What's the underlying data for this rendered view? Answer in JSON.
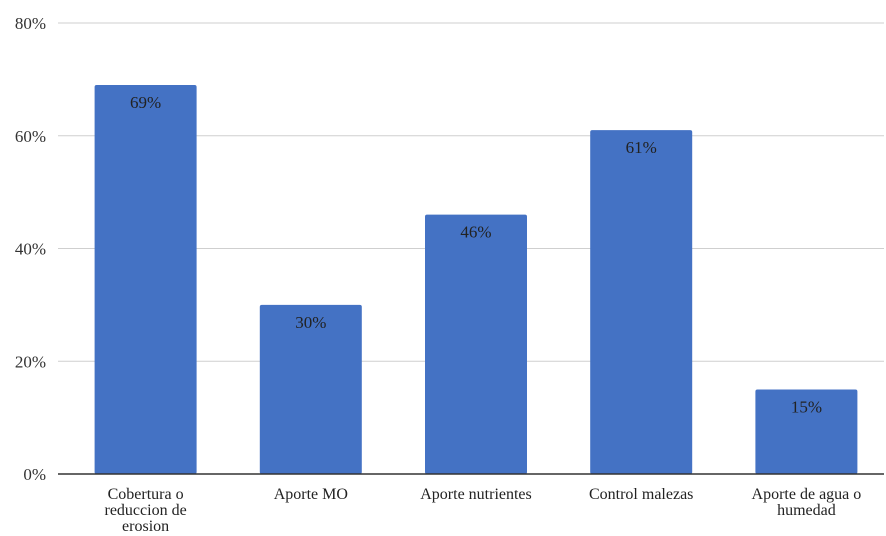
{
  "chart_data": {
    "type": "bar",
    "categories": [
      [
        "Cobertura o",
        "reduccion de",
        "erosion"
      ],
      [
        "Aporte MO"
      ],
      [
        "Aporte nutrientes"
      ],
      [
        "Control malezas"
      ],
      [
        "Aporte de agua o",
        "humedad"
      ]
    ],
    "values": [
      69,
      30,
      46,
      61,
      15
    ],
    "data_labels": [
      "69%",
      "30%",
      "46%",
      "61%",
      "15%"
    ],
    "yticks": [
      "0%",
      "20%",
      "40%",
      "60%",
      "80%"
    ],
    "ylim": [
      0,
      80
    ],
    "grid": true,
    "title": "",
    "xlabel": "",
    "ylabel": "",
    "colors": {
      "bar": "#4472c4",
      "grid": "#cfcfcf",
      "axis": "#333333"
    }
  }
}
